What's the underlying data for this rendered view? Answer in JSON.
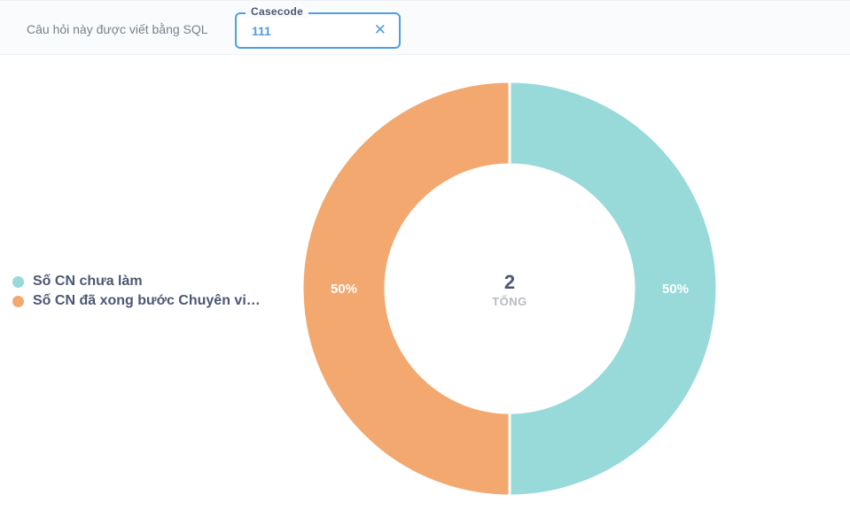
{
  "header": {
    "sql_note": "Câu hỏi này được viết bằng SQL",
    "filter": {
      "label": "Casecode",
      "value": "111",
      "clear_icon": "close-icon"
    }
  },
  "chart_data": {
    "type": "pie",
    "donut": true,
    "slices": [
      {
        "label": "Số CN chưa làm",
        "value": 1,
        "percent_label": "50%",
        "color": "#98d9d9"
      },
      {
        "label": "Số CN đã xong bước Chuyên vi…",
        "value": 1,
        "percent_label": "50%",
        "color": "#f2a86f"
      }
    ],
    "total": {
      "value": "2",
      "label": "TỔNG"
    },
    "legend_position": "left"
  }
}
